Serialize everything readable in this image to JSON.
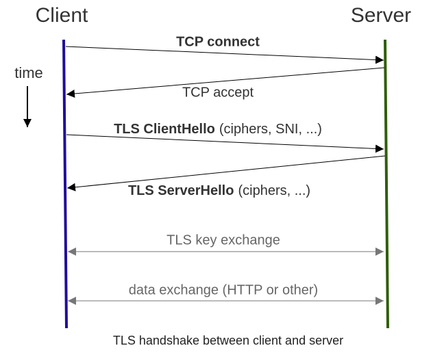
{
  "participants": {
    "client": "Client",
    "server": "Server"
  },
  "time_label": "time",
  "messages": [
    {
      "bold": "TCP connect"
    },
    {
      "text": "TCP accept"
    },
    {
      "bold": "TLS ClientHello",
      "text": "(ciphers, SNI, ...)"
    },
    {
      "bold": "TLS ServerHello",
      "text": "(ciphers, ...)"
    },
    {
      "text": "TLS key exchange"
    },
    {
      "text": "data exchange (HTTP or other)"
    }
  ],
  "caption": "TLS handshake between client and server"
}
